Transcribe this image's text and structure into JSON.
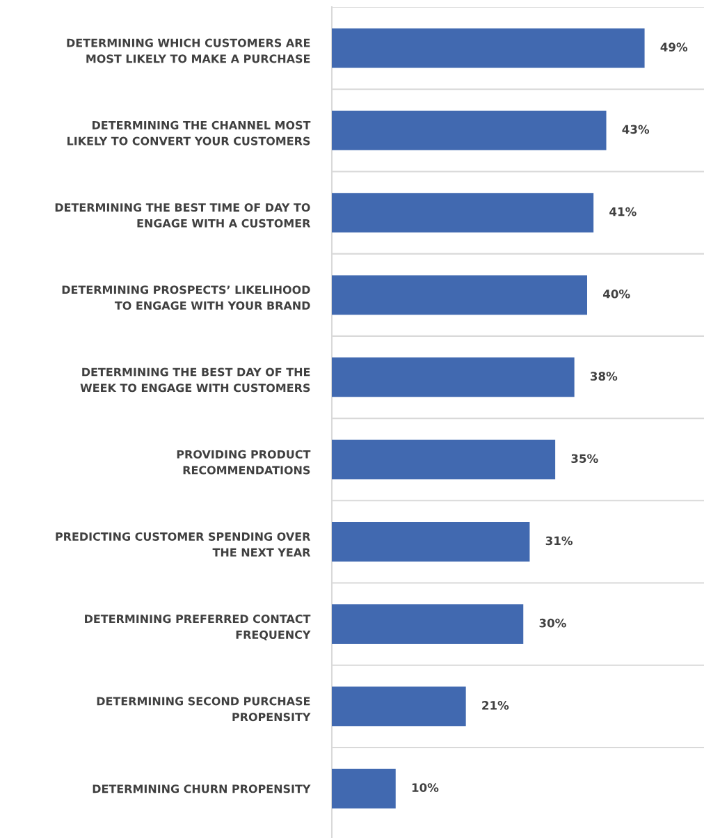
{
  "chart_data": {
    "type": "bar",
    "orientation": "horizontal",
    "categories": [
      "DETERMINING WHICH CUSTOMERS ARE\nMOST LIKELY TO MAKE A PURCHASE",
      "DETERMINING THE CHANNEL MOST\nLIKELY TO CONVERT YOUR CUSTOMERS",
      "DETERMINING THE BEST TIME OF DAY TO\nENGAGE WITH A CUSTOMER",
      "DETERMINING PROSPECTS’ LIKELIHOOD\nTO ENGAGE WITH YOUR BRAND",
      "DETERMINING THE BEST DAY OF THE\nWEEK TO ENGAGE WITH CUSTOMERS",
      "PROVIDING PRODUCT\nRECOMMENDATIONS",
      "PREDICTING CUSTOMER SPENDING OVER\nTHE NEXT YEAR",
      "DETERMINING PREFERRED CONTACT\nFREQUENCY",
      "DETERMINING SECOND PURCHASE\nPROPENSITY",
      "DETERMINING CHURN PROPENSITY"
    ],
    "values": [
      49,
      43,
      41,
      40,
      38,
      35,
      31,
      30,
      21,
      10
    ],
    "value_labels": [
      "49%",
      "43%",
      "41%",
      "40%",
      "38%",
      "35%",
      "31%",
      "30%",
      "21%",
      "10%"
    ],
    "color": "#4169b0",
    "grid": "y",
    "tick_labels": "y"
  }
}
